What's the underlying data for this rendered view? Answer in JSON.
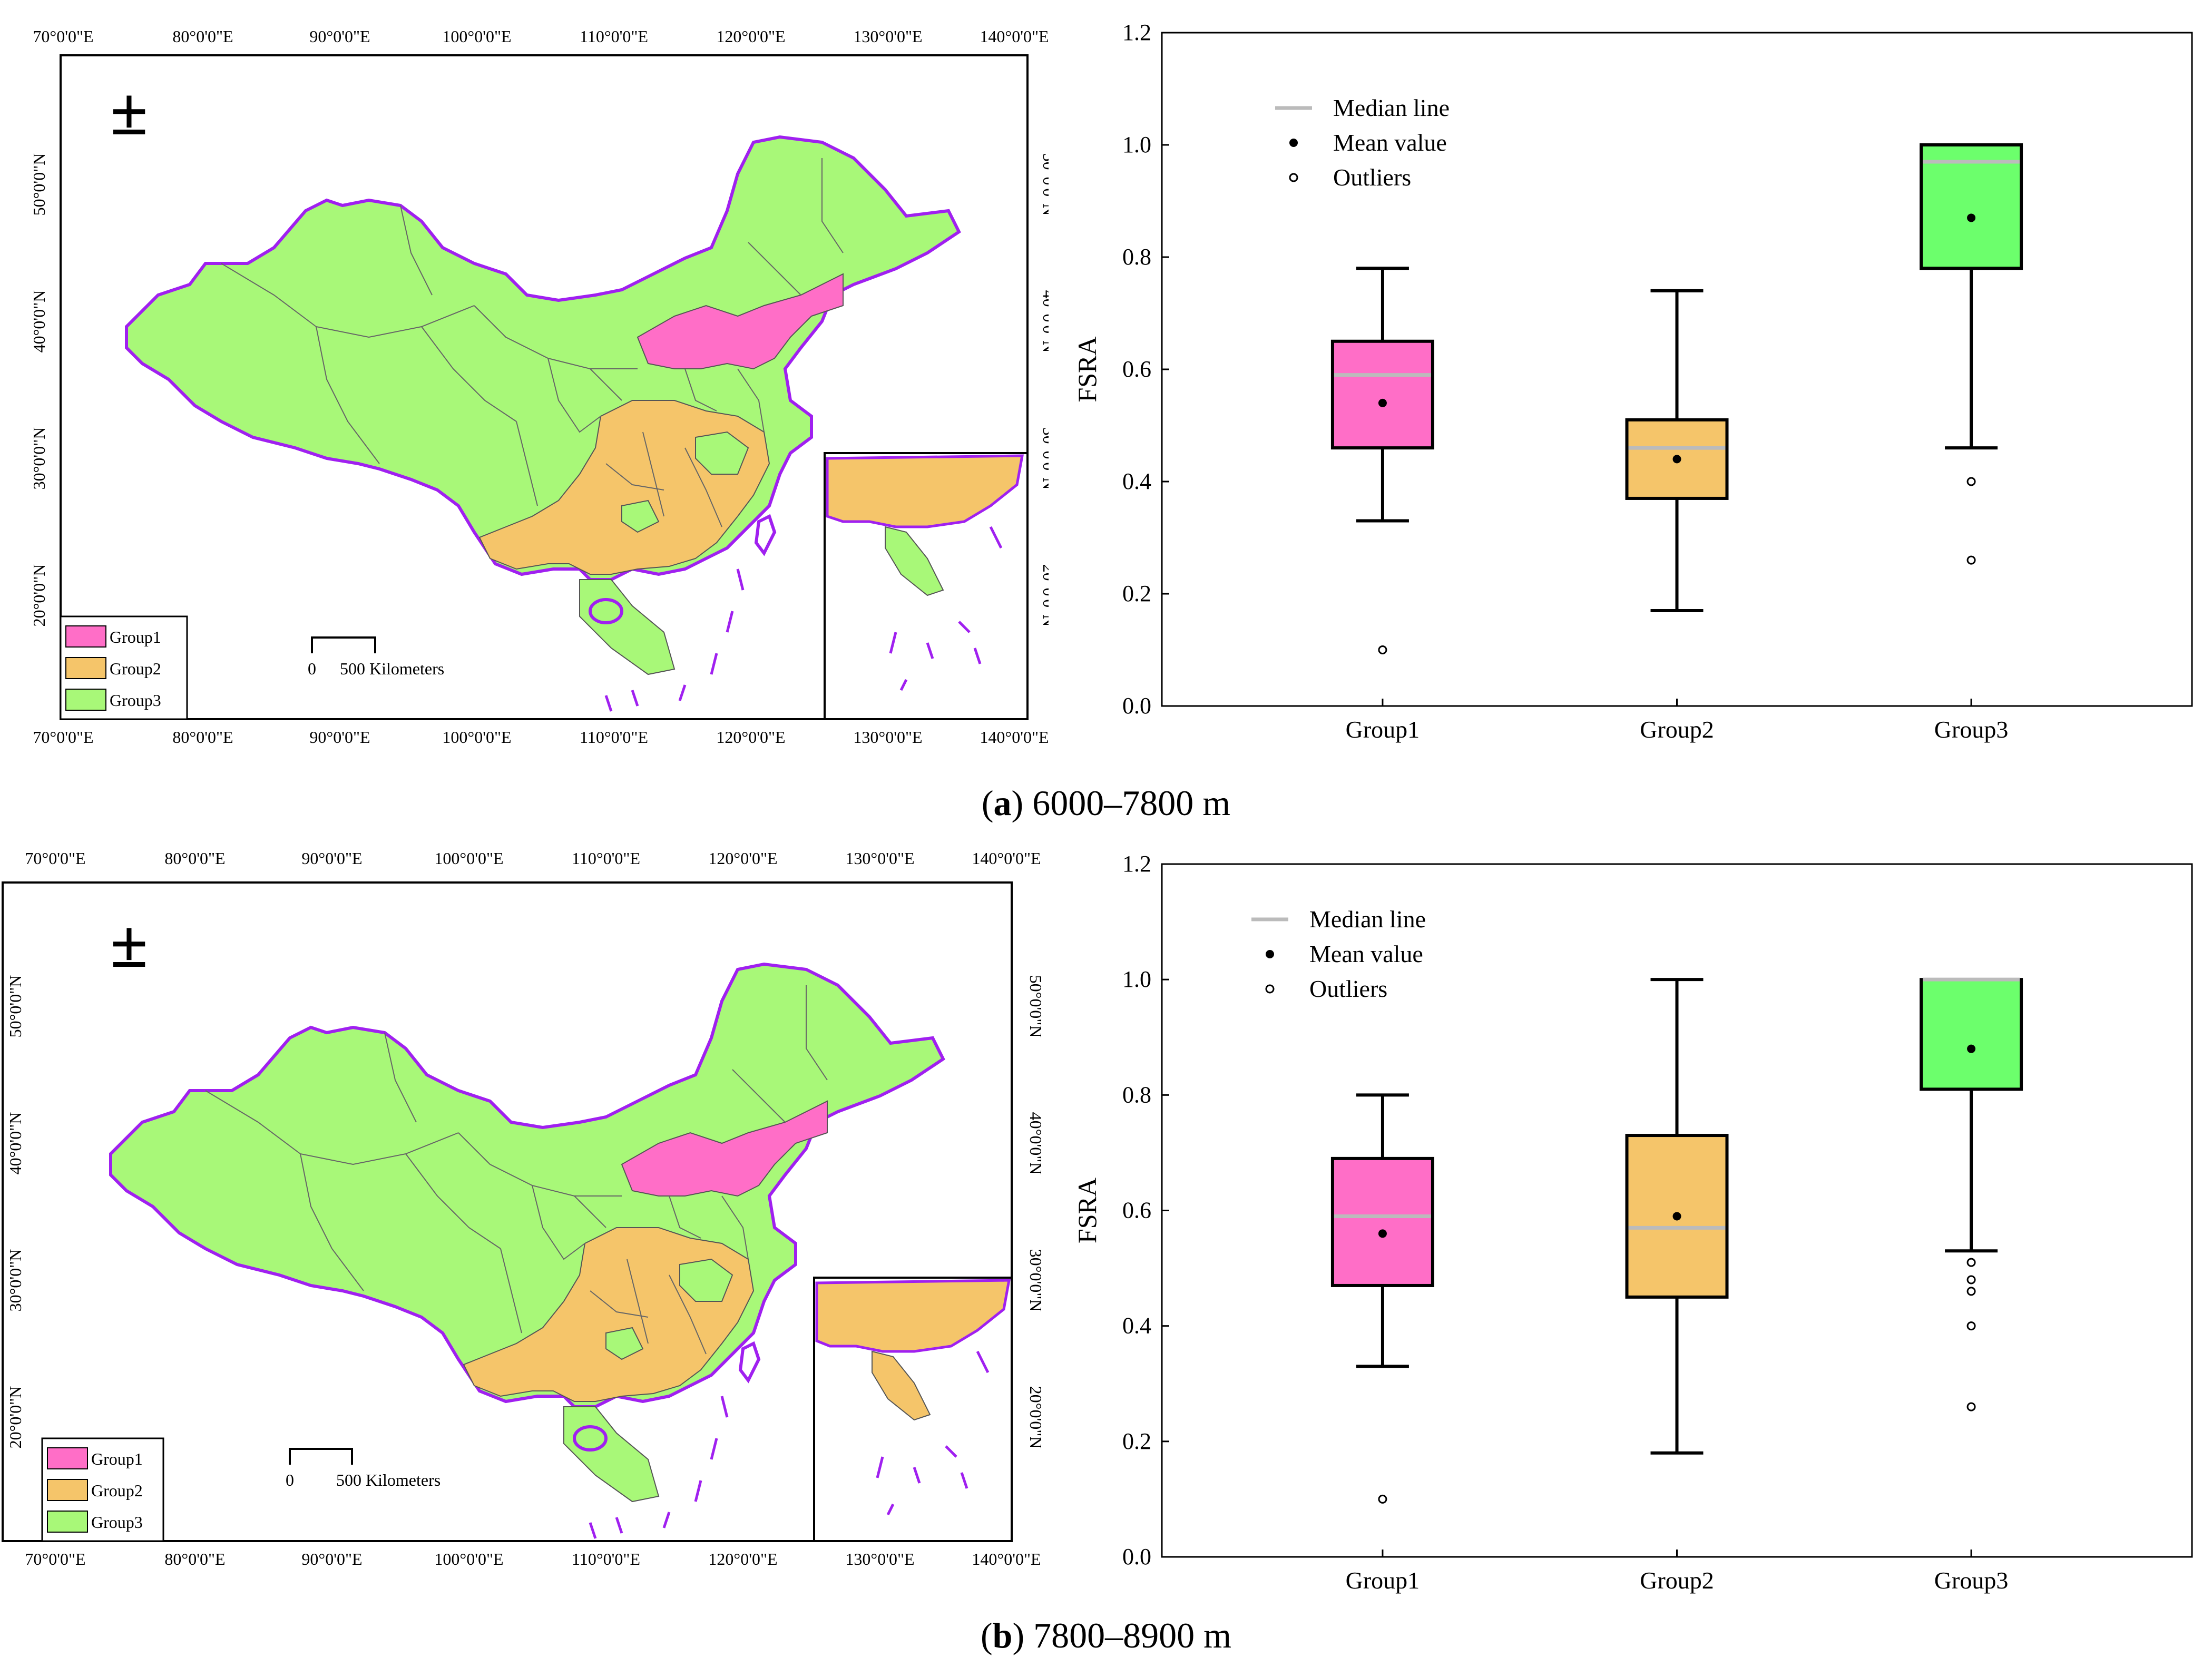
{
  "colors": {
    "group1": "#ff6ec7",
    "group2": "#f5c56a",
    "group3": "#a8f878",
    "group3_box": "#6cff6c",
    "boundary": "#a020f0",
    "median": "#bbbbbb"
  },
  "maps": {
    "lon_ticks": [
      "70°0'0\"E",
      "80°0'0\"E",
      "90°0'0\"E",
      "100°0'0\"E",
      "110°0'0\"E",
      "120°0'0\"E",
      "130°0'0\"E",
      "140°0'0\"E"
    ],
    "lat_ticks": [
      "50°0'0\"N",
      "40°0'0\"N",
      "30°0'0\"N",
      "20°0'0\"N"
    ],
    "north_arrow": "±",
    "legend": [
      "Group1",
      "Group2",
      "Group3"
    ],
    "scale_zero": "0",
    "scale_label": "500 Kilometers"
  },
  "captions": {
    "a_letter": "a",
    "a_text": "6000–7800 m",
    "b_letter": "b",
    "b_text": "7800–8900 m"
  },
  "chart_data": [
    {
      "type": "box",
      "panel": "a",
      "ylabel": "FSRA",
      "ylim": [
        0.0,
        1.2
      ],
      "yticks": [
        "0.0",
        "0.2",
        "0.4",
        "0.6",
        "0.8",
        "1.0",
        "1.2"
      ],
      "categories": [
        "Group1",
        "Group2",
        "Group3"
      ],
      "legend": [
        "Median line",
        "Mean value",
        "Outliers"
      ],
      "boxes": [
        {
          "name": "Group1",
          "whisker_low": 0.33,
          "q1": 0.46,
          "median": 0.59,
          "q3": 0.65,
          "whisker_high": 0.78,
          "mean": 0.54,
          "outliers": [
            0.1
          ]
        },
        {
          "name": "Group2",
          "whisker_low": 0.17,
          "q1": 0.37,
          "median": 0.46,
          "q3": 0.51,
          "whisker_high": 0.74,
          "mean": 0.44,
          "outliers": []
        },
        {
          "name": "Group3",
          "whisker_low": 0.46,
          "q1": 0.78,
          "median": 0.97,
          "q3": 1.0,
          "whisker_high": 1.0,
          "mean": 0.87,
          "outliers": [
            0.4,
            0.26
          ]
        }
      ]
    },
    {
      "type": "box",
      "panel": "b",
      "ylabel": "FSRA",
      "ylim": [
        0.0,
        1.2
      ],
      "yticks": [
        "0.0",
        "0.2",
        "0.4",
        "0.6",
        "0.8",
        "1.0",
        "1.2"
      ],
      "categories": [
        "Group1",
        "Group2",
        "Group3"
      ],
      "legend": [
        "Median line",
        "Mean value",
        "Outliers"
      ],
      "boxes": [
        {
          "name": "Group1",
          "whisker_low": 0.33,
          "q1": 0.47,
          "median": 0.59,
          "q3": 0.69,
          "whisker_high": 0.8,
          "mean": 0.56,
          "outliers": [
            0.1
          ]
        },
        {
          "name": "Group2",
          "whisker_low": 0.18,
          "q1": 0.45,
          "median": 0.57,
          "q3": 0.73,
          "whisker_high": 1.0,
          "mean": 0.59,
          "outliers": []
        },
        {
          "name": "Group3",
          "whisker_low": 0.53,
          "q1": 0.81,
          "median": 1.0,
          "q3": 1.0,
          "whisker_high": 1.0,
          "mean": 0.88,
          "outliers": [
            0.51,
            0.48,
            0.46,
            0.4,
            0.26
          ]
        }
      ]
    }
  ]
}
